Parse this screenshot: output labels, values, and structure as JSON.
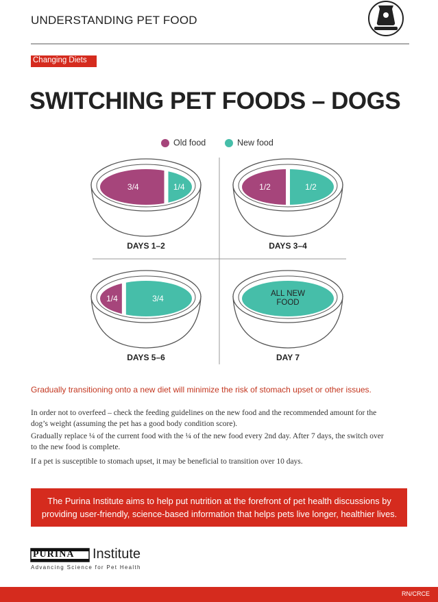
{
  "header": {
    "title": "UNDERSTANDING PET FOOD"
  },
  "tag": "Changing Diets",
  "title": "SWITCHING PET FOODS – DOGS",
  "legend": [
    {
      "label": "Old food",
      "color": "#a6457b"
    },
    {
      "label": "New food",
      "color": "#46bea9"
    }
  ],
  "bowls": [
    {
      "caption": "DAYS 1–2",
      "old": "3/4",
      "new": "1/4"
    },
    {
      "caption": "DAYS 3–4",
      "old": "1/2",
      "new": "1/2"
    },
    {
      "caption": "DAYS 5–6",
      "old": "1/4",
      "new": "3/4"
    },
    {
      "caption": "DAY 7",
      "new_lines": [
        "ALL NEW",
        "FOOD"
      ]
    }
  ],
  "highlight": "Gradually transitioning onto a new diet will minimize the risk of stomach upset or other issues.",
  "paragraphs": [
    "In order not to overfeed – check the feeding guidelines on the new food and the recommended amount for the dog’s weight (assuming the pet has a good body condition score).",
    "Gradually replace ¼ of the current food with the ¼ of the new food every 2nd day. After 7 days, the switch over to the new food is complete.",
    "If a pet is susceptible to stomach upset, it may be beneficial to transition over 10 days."
  ],
  "banner": "The Purina Institute aims to help put nutrition at the forefront of pet health discussions by providing user-friendly, science-based information that helps pets live longer, healthier lives.",
  "logo": {
    "brand": "PURINA",
    "name": "Institute",
    "tagline": "Advancing Science for Pet Health"
  },
  "footer": "RN/CRCE"
}
